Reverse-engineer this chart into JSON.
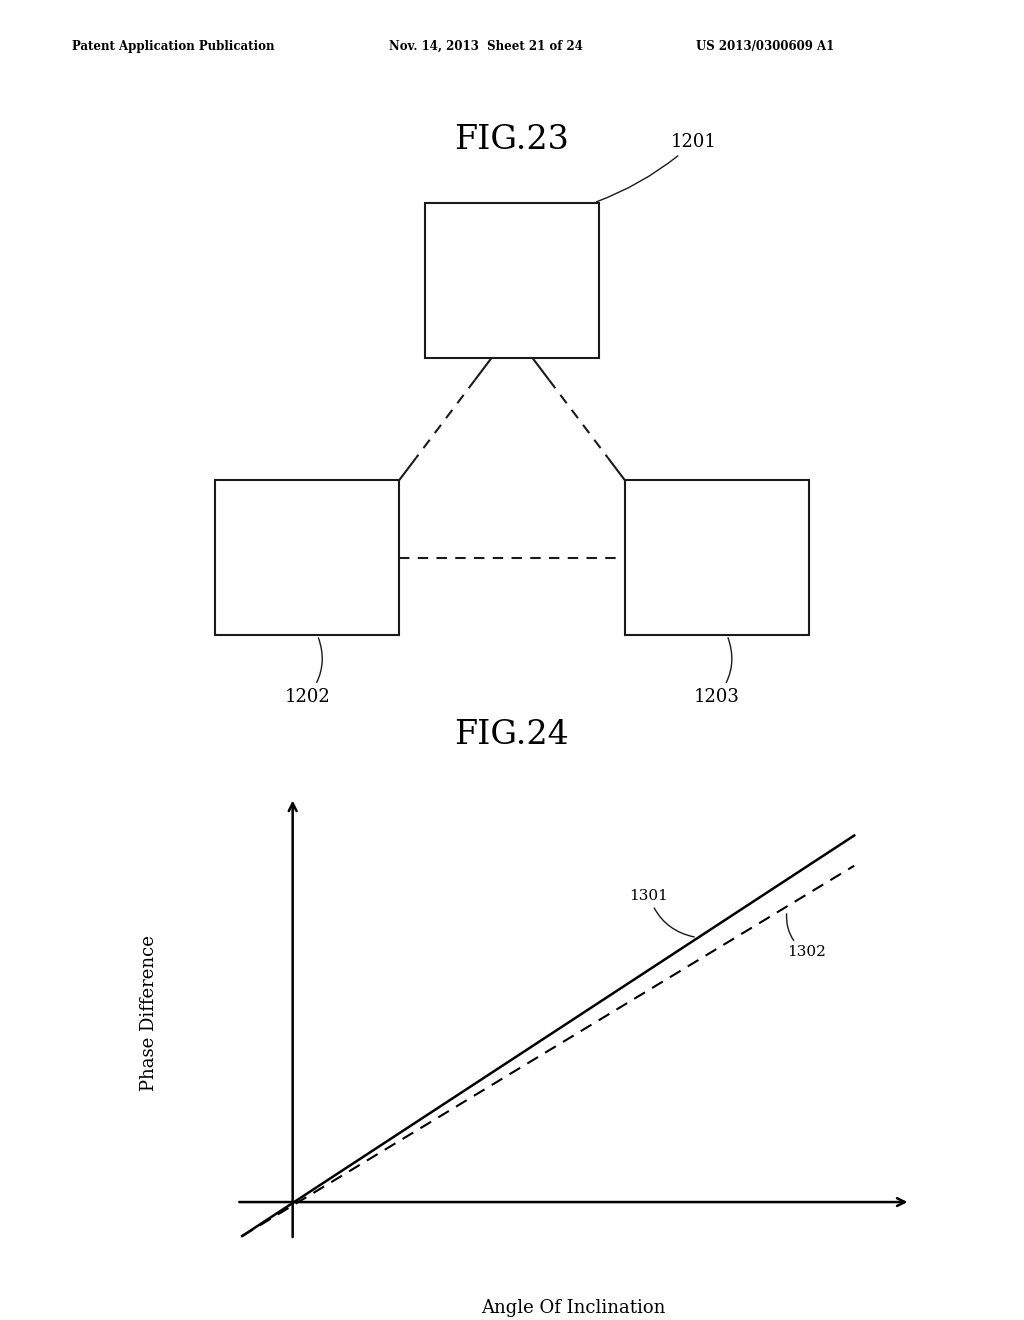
{
  "background_color": "#ffffff",
  "header_left": "Patent Application Publication",
  "header_mid": "Nov. 14, 2013  Sheet 21 of 24",
  "header_right": "US 2013/0300609 A1",
  "fig23_title": "FIG.23",
  "fig24_title": "FIG.24",
  "label_1201": "1201",
  "label_1202": "1202",
  "label_1203": "1203",
  "line_color": "#1a1a1a",
  "xlabel": "Angle Of Inclination",
  "ylabel": "Phase Difference",
  "line1301_label": "1301",
  "line1302_label": "1302"
}
